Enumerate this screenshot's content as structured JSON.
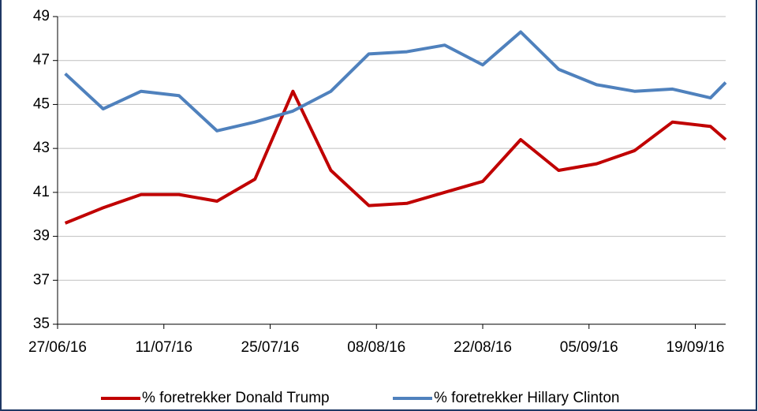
{
  "chart_data": {
    "type": "line",
    "x": [
      "28/06/16",
      "03/07/16",
      "08/07/16",
      "13/07/16",
      "18/07/16",
      "23/07/16",
      "28/07/16",
      "02/08/16",
      "07/08/16",
      "12/08/16",
      "17/08/16",
      "22/08/16",
      "27/08/16",
      "01/09/16",
      "06/09/16",
      "11/09/16",
      "16/09/16",
      "21/09/16",
      "23/09/16"
    ],
    "series": [
      {
        "name": "% foretrekker Donald Trump",
        "color": "#c00000",
        "values": [
          39.6,
          40.3,
          40.9,
          40.9,
          40.6,
          41.6,
          45.6,
          42.0,
          40.4,
          40.5,
          41.0,
          41.5,
          43.4,
          42.0,
          42.3,
          42.9,
          44.2,
          44.0,
          43.4
        ]
      },
      {
        "name": "% foretrekker Hillary Clinton",
        "color": "#4f81bd",
        "values": [
          46.4,
          44.8,
          45.6,
          45.4,
          43.8,
          44.2,
          44.7,
          45.6,
          47.3,
          47.4,
          47.7,
          46.8,
          48.3,
          46.6,
          45.9,
          45.6,
          45.7,
          45.3,
          46.0
        ]
      }
    ],
    "xlim": [
      "27/06/16",
      "23/09/16"
    ],
    "xticks": [
      "27/06/16",
      "11/07/16",
      "25/07/16",
      "08/08/16",
      "22/08/16",
      "05/09/16",
      "19/09/16"
    ],
    "ylim": [
      35,
      49
    ],
    "yticks": [
      35,
      37,
      39,
      41,
      43,
      45,
      47,
      49
    ],
    "grid": true,
    "legend": "bottom"
  }
}
